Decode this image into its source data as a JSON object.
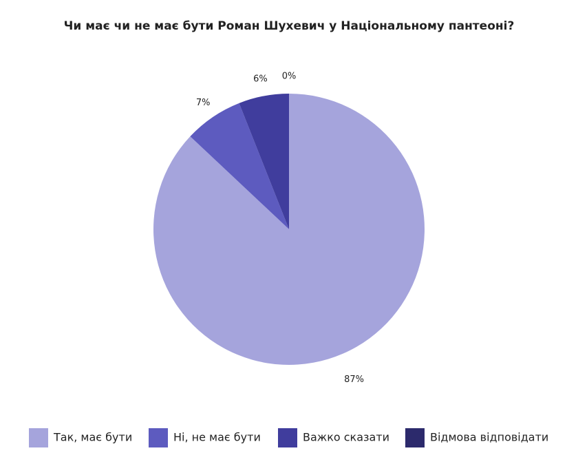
{
  "chart_data": {
    "type": "pie",
    "title": "Чи має чи не має бути Роман Шухевич у Національному пантеоні?",
    "categories": [
      "Так, має бути",
      "Ні, не має бути",
      "Важко сказати",
      "Відмова відповідати"
    ],
    "values": [
      87,
      7,
      6,
      0
    ],
    "value_labels": [
      "87%",
      "7%",
      "6%",
      "0%"
    ],
    "colors": [
      "#a5a4dc",
      "#5d5bbf",
      "#403d9d",
      "#2c2a6c"
    ],
    "legend": "bottom"
  }
}
